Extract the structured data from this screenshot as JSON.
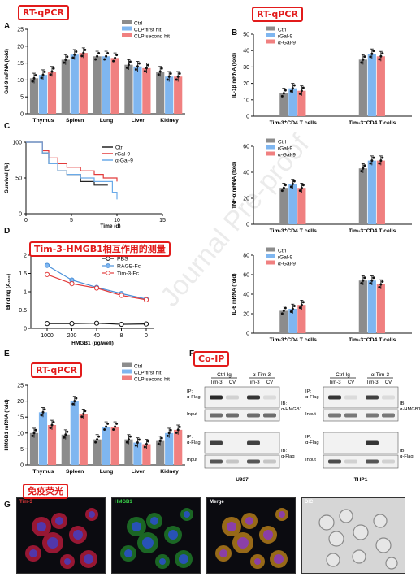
{
  "annotations": {
    "tag_A": "RT-qPCR",
    "tag_B": "RT-qPCR",
    "tag_D": "Tim-3-HMGB1相互作用的测量",
    "tag_E": "RT-qPCR",
    "tag_F": "Co-IP",
    "tag_G": "免疫荧光"
  },
  "watermark": "Journal Pre-proof",
  "panel_letters": [
    "A",
    "B",
    "C",
    "D",
    "E",
    "F",
    "G"
  ],
  "colors": {
    "ctrl": "#8c8c8c",
    "blue": "#7fb6f0",
    "red": "#f08080",
    "line_black": "#222222",
    "line_red": "#e23b3b",
    "line_blue": "#6aaae8"
  },
  "chart_data": [
    {
      "id": "A",
      "type": "bar",
      "ylabel": "Gal-9 mRNA (fold)",
      "ylim": [
        0,
        25
      ],
      "yticks": [
        0,
        5,
        10,
        15,
        20,
        25
      ],
      "categories": [
        "Thymus",
        "Spleen",
        "Lung",
        "Liver",
        "Kidney"
      ],
      "series": [
        {
          "name": "Ctrl",
          "values": [
            10.5,
            16,
            17,
            14.5,
            12.5
          ]
        },
        {
          "name": "CLP first hit",
          "values": [
            11.5,
            17.5,
            17,
            14,
            11
          ]
        },
        {
          "name": "CLP second hit",
          "values": [
            12.5,
            18,
            16.5,
            13.5,
            11
          ]
        }
      ]
    },
    {
      "id": "B1",
      "type": "bar",
      "ylabel": "IL-1β mRNA (fold)",
      "ylim": [
        0,
        50
      ],
      "yticks": [
        0,
        10,
        20,
        30,
        40,
        50
      ],
      "categories": [
        "Tim-3⁺CD4 T cells",
        "Tim-3⁻CD4 T cells"
      ],
      "series": [
        {
          "name": "Ctrl",
          "values": [
            14,
            34.5
          ]
        },
        {
          "name": "rGal-9",
          "values": [
            17,
            38
          ]
        },
        {
          "name": "α-Gal-9",
          "values": [
            15.5,
            36.5
          ]
        }
      ]
    },
    {
      "id": "B2",
      "type": "bar",
      "ylabel": "TNF-α mRNA (fold)",
      "ylim": [
        0,
        60
      ],
      "yticks": [
        0,
        20,
        40,
        60
      ],
      "categories": [
        "Tim-3⁺CD4 T cells",
        "Tim-3⁻CD4 T cells"
      ],
      "series": [
        {
          "name": "Ctrl",
          "values": [
            28,
            43
          ]
        },
        {
          "name": "rGal-9",
          "values": [
            31,
            49
          ]
        },
        {
          "name": "α-Gal-9",
          "values": [
            28,
            49
          ]
        }
      ]
    },
    {
      "id": "B3",
      "type": "bar",
      "ylabel": "IL-6 mRNA (fold)",
      "ylim": [
        0,
        80
      ],
      "yticks": [
        0,
        20,
        40,
        60,
        80
      ],
      "categories": [
        "Tim-3⁺CD4 T cells",
        "Tim-3⁻CD4 T cells"
      ],
      "series": [
        {
          "name": "Ctrl",
          "values": [
            23,
            54
          ]
        },
        {
          "name": "rGal-9",
          "values": [
            25,
            54
          ]
        },
        {
          "name": "α-Gal-9",
          "values": [
            29,
            50
          ]
        }
      ]
    },
    {
      "id": "C",
      "type": "line",
      "ylabel": "Survival (%)",
      "xlabel": "Time (d)",
      "xlim": [
        0,
        15
      ],
      "ylim": [
        0,
        100
      ],
      "xticks": [
        0,
        5,
        10,
        15
      ],
      "yticks": [
        0,
        50,
        100
      ],
      "series": [
        {
          "name": "Ctrl",
          "x": [
            0,
            1,
            1.8,
            2.5,
            3.5,
            4.5,
            6,
            7.5,
            9
          ],
          "y": [
            100,
            100,
            85,
            70,
            60,
            55,
            45,
            40,
            40
          ]
        },
        {
          "name": "rGal-9",
          "x": [
            0,
            1,
            1.8,
            2.5,
            3.5,
            4.5,
            6,
            7.5,
            8.5,
            10
          ],
          "y": [
            100,
            100,
            88,
            78,
            70,
            65,
            60,
            55,
            50,
            45
          ]
        },
        {
          "name": "α-Gal-9",
          "x": [
            0,
            1,
            1.8,
            2.5,
            3.5,
            4.5,
            6,
            7.5,
            9.5,
            10
          ],
          "y": [
            100,
            100,
            85,
            70,
            60,
            55,
            50,
            45,
            30,
            20
          ]
        }
      ]
    },
    {
      "id": "D",
      "type": "line",
      "ylabel": "Binding (A₄₅₀)",
      "xlabel": "HMGB1 (pg/well)",
      "categories": [
        "1000",
        "200",
        "40",
        "8",
        "0"
      ],
      "ylim": [
        0,
        2.0
      ],
      "yticks": [
        0,
        0.5,
        1.0,
        1.5,
        2.0
      ],
      "series": [
        {
          "name": "PBS",
          "values": [
            0.13,
            0.13,
            0.14,
            0.11,
            0.12
          ]
        },
        {
          "name": "RAGE-Fc",
          "values": [
            1.72,
            1.32,
            1.12,
            0.95,
            0.8
          ]
        },
        {
          "name": "Tim-3-Fc",
          "values": [
            1.47,
            1.22,
            1.1,
            0.9,
            0.78
          ]
        }
      ]
    },
    {
      "id": "E",
      "type": "bar",
      "ylabel": "HMGB1 mRNA (fold)",
      "ylim": [
        0,
        25
      ],
      "yticks": [
        0,
        5,
        10,
        15,
        20,
        25
      ],
      "categories": [
        "Thymus",
        "Spleen",
        "Lung",
        "Liver",
        "Kidney"
      ],
      "series": [
        {
          "name": "Ctrl",
          "values": [
            10,
            9.5,
            8,
            8,
            7.5
          ]
        },
        {
          "name": "CLP first hit",
          "values": [
            16.5,
            20,
            12,
            7,
            10
          ]
        },
        {
          "name": "CLP second hit",
          "values": [
            12.5,
            16,
            12,
            6.5,
            11
          ]
        }
      ]
    }
  ],
  "blots": {
    "left": {
      "group1": "Ctrl-Ig",
      "group2": "α-Tim-3",
      "lanes": [
        "Tim-3",
        "CV",
        "Tim-3",
        "CV"
      ],
      "row_labels": [
        "IP:\nα-Flag",
        "Input",
        "IP:\nα-Flag",
        "Input"
      ],
      "ib1": "IB:\nα-HMGB1",
      "ib2": "IB:\nα-Flag",
      "cell": "U937"
    },
    "right": {
      "group1": "Ctrl-Ig",
      "group2": "α-Tim-3",
      "lanes": [
        "Tim-3",
        "CV",
        "Tim-3",
        "CV"
      ],
      "row_labels": [
        "IP:\nα-Flag",
        "Input",
        "IP:\nα-Flag",
        "Input"
      ],
      "ib1": "IB:\nα-HMGB1",
      "ib2": "IB:\nα-Flag",
      "cell": "THP1"
    }
  },
  "micrographs": [
    "Tim-3",
    "HMGB1",
    "Merge",
    "DIC"
  ]
}
